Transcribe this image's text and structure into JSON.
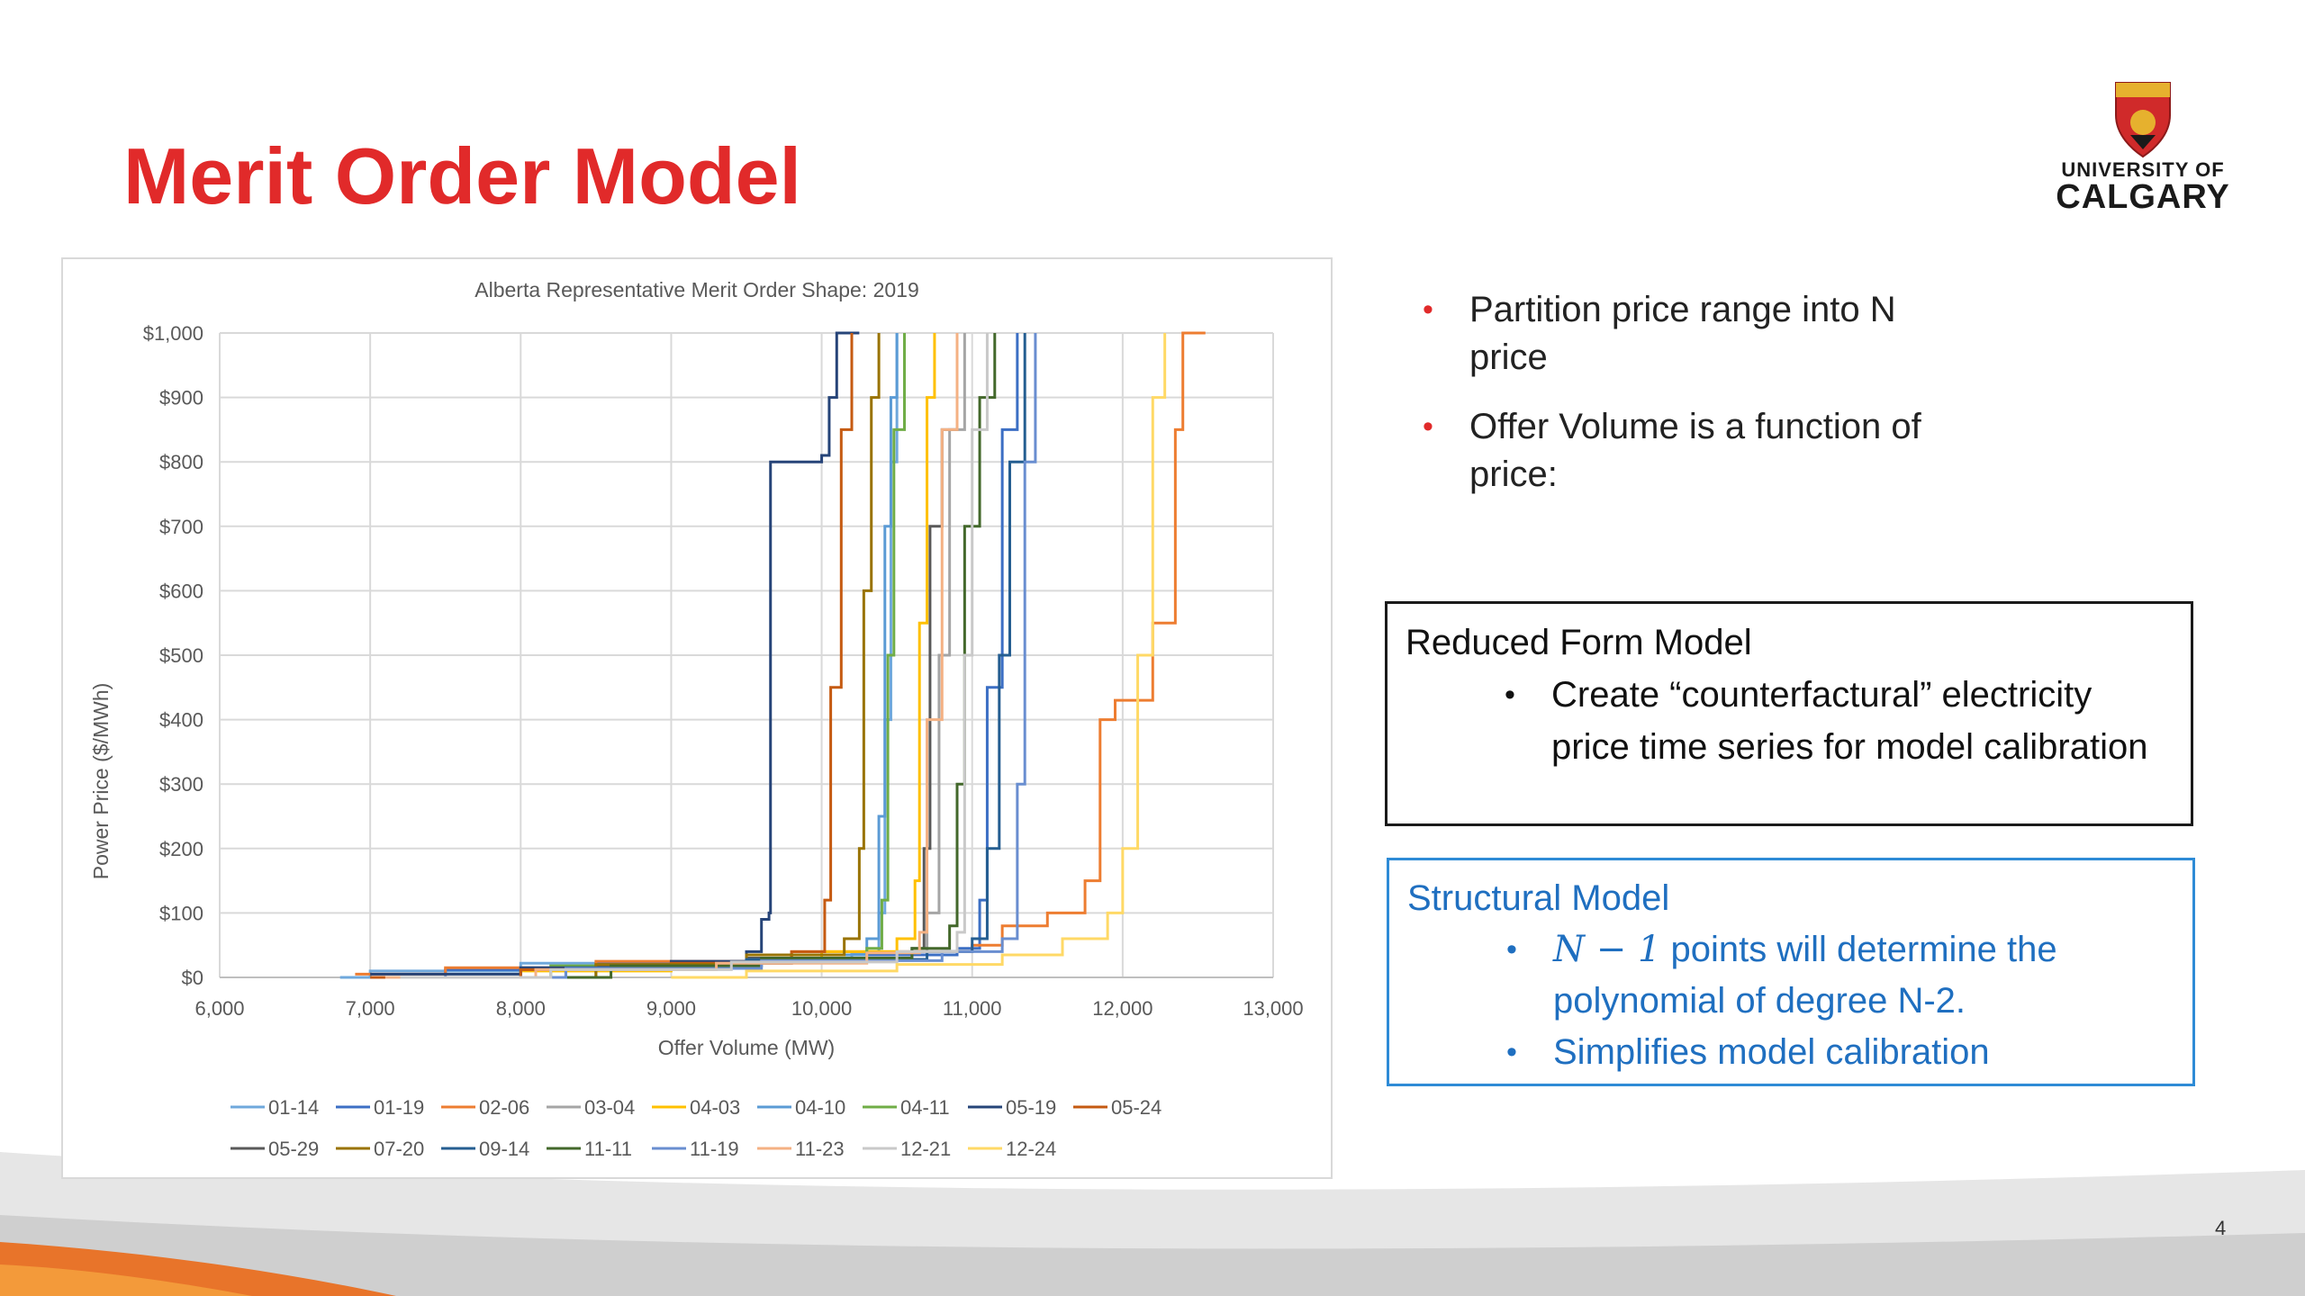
{
  "slide": {
    "title": "Merit Order Model",
    "page_number": "4",
    "logo": {
      "line1": "UNIVERSITY OF",
      "line2": "CALGARY"
    },
    "bullets": [
      "Partition price range into N price",
      " Offer Volume is a function of price:"
    ],
    "reduced_box": {
      "title": "Reduced Form Model",
      "items": [
        "Create “counterfactural” electricity price time series for model calibration"
      ]
    },
    "structural_box": {
      "title": "Structural Model",
      "item1_math": "N − 1",
      "item1_text": " points will determine the polynomial of degree N-2.",
      "item2": "Simplifies model calibration"
    },
    "colors": {
      "title": "#e12a2a",
      "structural": "#1f6fc0",
      "bullet": "#e12a2a"
    }
  },
  "chart_data": {
    "type": "line",
    "title": "Alberta Representative Merit Order Shape: 2019",
    "xlabel": "Offer Volume (MW)",
    "ylabel": "Power Price ($/MWh)",
    "xlim": [
      6000,
      13000
    ],
    "ylim": [
      0,
      1000
    ],
    "xticks": [
      6000,
      7000,
      8000,
      9000,
      10000,
      11000,
      12000,
      13000
    ],
    "xtick_labels": [
      "6,000",
      "7,000",
      "8,000",
      "9,000",
      "10,000",
      "11,000",
      "12,000",
      "13,000"
    ],
    "yticks": [
      0,
      100,
      200,
      300,
      400,
      500,
      600,
      700,
      800,
      900,
      1000
    ],
    "ytick_labels": [
      "$0",
      "$100",
      "$200",
      "$300",
      "$400",
      "$500",
      "$600",
      "$700",
      "$800",
      "$900",
      "$1,000"
    ],
    "grid": true,
    "legend": "bottom",
    "series": [
      {
        "name": "01-14",
        "color": "#6fa8dc",
        "points": [
          [
            6800,
            0
          ],
          [
            7000,
            10
          ],
          [
            8000,
            22
          ],
          [
            9500,
            30
          ],
          [
            10200,
            38
          ],
          [
            10380,
            100
          ],
          [
            10420,
            400
          ],
          [
            10460,
            800
          ],
          [
            10500,
            1000
          ]
        ]
      },
      {
        "name": "01-19",
        "color": "#3c6fc4",
        "points": [
          [
            7000,
            0
          ],
          [
            7500,
            12
          ],
          [
            8500,
            22
          ],
          [
            9800,
            35
          ],
          [
            10900,
            45
          ],
          [
            11050,
            120
          ],
          [
            11100,
            450
          ],
          [
            11200,
            850
          ],
          [
            11300,
            1000
          ]
        ]
      },
      {
        "name": "02-06",
        "color": "#ed7d31",
        "points": [
          [
            6900,
            5
          ],
          [
            7500,
            15
          ],
          [
            8500,
            25
          ],
          [
            9800,
            40
          ],
          [
            11000,
            50
          ],
          [
            11200,
            80
          ],
          [
            11500,
            100
          ],
          [
            11750,
            150
          ],
          [
            11850,
            400
          ],
          [
            11950,
            430
          ],
          [
            12200,
            550
          ],
          [
            12350,
            850
          ],
          [
            12400,
            1000
          ],
          [
            12550,
            1000
          ]
        ]
      },
      {
        "name": "03-04",
        "color": "#a5a5a5",
        "points": [
          [
            7000,
            0
          ],
          [
            8000,
            15
          ],
          [
            9500,
            28
          ],
          [
            10500,
            40
          ],
          [
            10700,
            100
          ],
          [
            10780,
            500
          ],
          [
            10850,
            850
          ],
          [
            10950,
            1000
          ]
        ]
      },
      {
        "name": "04-03",
        "color": "#ffc000",
        "points": [
          [
            7000,
            0
          ],
          [
            8000,
            10
          ],
          [
            9000,
            20
          ],
          [
            9500,
            25
          ],
          [
            10000,
            40
          ],
          [
            10500,
            60
          ],
          [
            10620,
            150
          ],
          [
            10650,
            550
          ],
          [
            10700,
            900
          ],
          [
            10750,
            1000
          ]
        ]
      },
      {
        "name": "04-10",
        "color": "#5b9bd5",
        "points": [
          [
            7000,
            0
          ],
          [
            8000,
            15
          ],
          [
            9500,
            35
          ],
          [
            10300,
            60
          ],
          [
            10380,
            250
          ],
          [
            10420,
            700
          ],
          [
            10460,
            900
          ],
          [
            10500,
            1000
          ]
        ]
      },
      {
        "name": "04-11",
        "color": "#70ad47",
        "points": [
          [
            7200,
            0
          ],
          [
            8200,
            18
          ],
          [
            9500,
            30
          ],
          [
            10300,
            45
          ],
          [
            10400,
            120
          ],
          [
            10440,
            500
          ],
          [
            10480,
            850
          ],
          [
            10550,
            1000
          ]
        ]
      },
      {
        "name": "05-19",
        "color": "#264478",
        "points": [
          [
            7000,
            5
          ],
          [
            8000,
            15
          ],
          [
            9000,
            25
          ],
          [
            9500,
            40
          ],
          [
            9600,
            90
          ],
          [
            9650,
            100
          ],
          [
            9660,
            800
          ],
          [
            10000,
            810
          ],
          [
            10050,
            900
          ],
          [
            10100,
            1000
          ],
          [
            10250,
            1000
          ]
        ]
      },
      {
        "name": "05-24",
        "color": "#c55a11",
        "points": [
          [
            7000,
            0
          ],
          [
            8000,
            12
          ],
          [
            9000,
            22
          ],
          [
            9800,
            40
          ],
          [
            10020,
            120
          ],
          [
            10060,
            450
          ],
          [
            10130,
            850
          ],
          [
            10200,
            1000
          ]
        ]
      },
      {
        "name": "05-29",
        "color": "#595959",
        "points": [
          [
            7500,
            0
          ],
          [
            8500,
            18
          ],
          [
            9500,
            30
          ],
          [
            10600,
            45
          ],
          [
            10680,
            200
          ],
          [
            10720,
            700
          ],
          [
            10800,
            850
          ],
          [
            10900,
            1000
          ]
        ]
      },
      {
        "name": "07-20",
        "color": "#997300",
        "points": [
          [
            7500,
            0
          ],
          [
            8500,
            20
          ],
          [
            9500,
            35
          ],
          [
            10150,
            60
          ],
          [
            10250,
            200
          ],
          [
            10280,
            600
          ],
          [
            10330,
            900
          ],
          [
            10380,
            1000
          ]
        ]
      },
      {
        "name": "09-14",
        "color": "#255e91",
        "points": [
          [
            7300,
            0
          ],
          [
            8300,
            15
          ],
          [
            9500,
            28
          ],
          [
            10700,
            40
          ],
          [
            11000,
            60
          ],
          [
            11100,
            200
          ],
          [
            11180,
            500
          ],
          [
            11250,
            800
          ],
          [
            11350,
            1000
          ]
        ]
      },
      {
        "name": "11-11",
        "color": "#43682b",
        "points": [
          [
            7600,
            0
          ],
          [
            8600,
            18
          ],
          [
            9600,
            30
          ],
          [
            10600,
            45
          ],
          [
            10850,
            80
          ],
          [
            10900,
            300
          ],
          [
            10950,
            700
          ],
          [
            11050,
            900
          ],
          [
            11150,
            1000
          ]
        ]
      },
      {
        "name": "11-19",
        "color": "#698ed0",
        "points": [
          [
            7300,
            0
          ],
          [
            8300,
            14
          ],
          [
            9600,
            26
          ],
          [
            10800,
            40
          ],
          [
            11200,
            60
          ],
          [
            11300,
            300
          ],
          [
            11350,
            800
          ],
          [
            11420,
            1000
          ]
        ]
      },
      {
        "name": "11-23",
        "color": "#f4b183",
        "points": [
          [
            7100,
            0
          ],
          [
            8100,
            12
          ],
          [
            9300,
            22
          ],
          [
            10300,
            38
          ],
          [
            10650,
            70
          ],
          [
            10700,
            400
          ],
          [
            10800,
            850
          ],
          [
            10900,
            1000
          ]
        ]
      },
      {
        "name": "12-21",
        "color": "#c9c9c9",
        "points": [
          [
            7200,
            0
          ],
          [
            8200,
            12
          ],
          [
            9400,
            24
          ],
          [
            10500,
            40
          ],
          [
            10900,
            70
          ],
          [
            10950,
            500
          ],
          [
            11000,
            850
          ],
          [
            11100,
            1000
          ]
        ]
      },
      {
        "name": "12-24",
        "color": "#ffd966",
        "points": [
          [
            9000,
            0
          ],
          [
            9500,
            10
          ],
          [
            10500,
            20
          ],
          [
            11200,
            35
          ],
          [
            11600,
            60
          ],
          [
            11900,
            100
          ],
          [
            12000,
            200
          ],
          [
            12100,
            500
          ],
          [
            12200,
            900
          ],
          [
            12280,
            1000
          ]
        ]
      }
    ]
  }
}
